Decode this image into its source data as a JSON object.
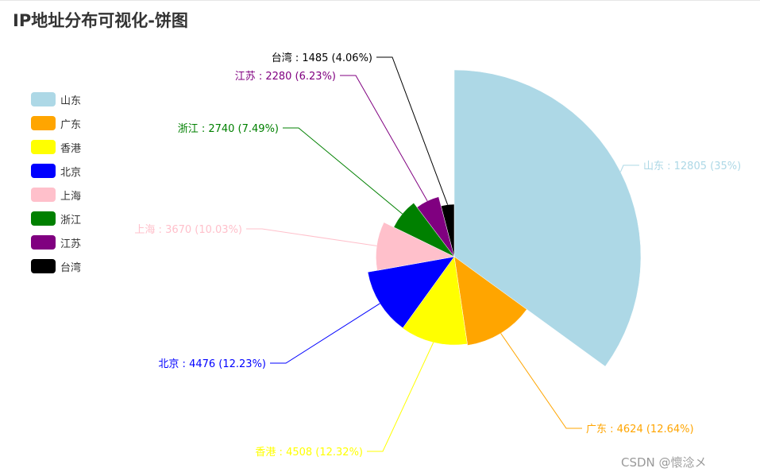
{
  "title": "IP地址分布可视化-饼图",
  "watermark": "CSDN @懷淰メ",
  "legend": [
    {
      "label": "山东",
      "color": "#add8e6"
    },
    {
      "label": "广东",
      "color": "#ffa500"
    },
    {
      "label": "香港",
      "color": "#ffff00"
    },
    {
      "label": "北京",
      "color": "#0000ff"
    },
    {
      "label": "上海",
      "color": "#ffc0cb"
    },
    {
      "label": "浙江",
      "color": "#008000"
    },
    {
      "label": "江苏",
      "color": "#800080"
    },
    {
      "label": "台湾",
      "color": "#000000"
    }
  ],
  "chart_data": {
    "type": "pie",
    "subtype": "rose-radius",
    "legend_position": "left",
    "slices": [
      {
        "name": "山东",
        "value": 12805,
        "percent": "35%",
        "label": "山东 : 12805 (35%)",
        "color": "#add8e6"
      },
      {
        "name": "广东",
        "value": 4624,
        "percent": "12.64%",
        "label": "广东 : 4624 (12.64%)",
        "color": "#ffa500"
      },
      {
        "name": "香港",
        "value": 4508,
        "percent": "12.32%",
        "label": "香港 : 4508 (12.32%)",
        "color": "#ffff00"
      },
      {
        "name": "北京",
        "value": 4476,
        "percent": "12.23%",
        "label": "北京 : 4476 (12.23%)",
        "color": "#0000ff"
      },
      {
        "name": "上海",
        "value": 3670,
        "percent": "10.03%",
        "label": "上海 : 3670 (10.03%)",
        "color": "#ffc0cb"
      },
      {
        "name": "浙江",
        "value": 2740,
        "percent": "7.49%",
        "label": "浙江 : 2740 (7.49%)",
        "color": "#008000"
      },
      {
        "name": "江苏",
        "value": 2280,
        "percent": "6.23%",
        "label": "江苏 : 2280 (6.23%)",
        "color": "#800080"
      },
      {
        "name": "台湾",
        "value": 1485,
        "percent": "4.06%",
        "label": "台湾 : 1485 (4.06%)",
        "color": "#000000"
      }
    ]
  }
}
